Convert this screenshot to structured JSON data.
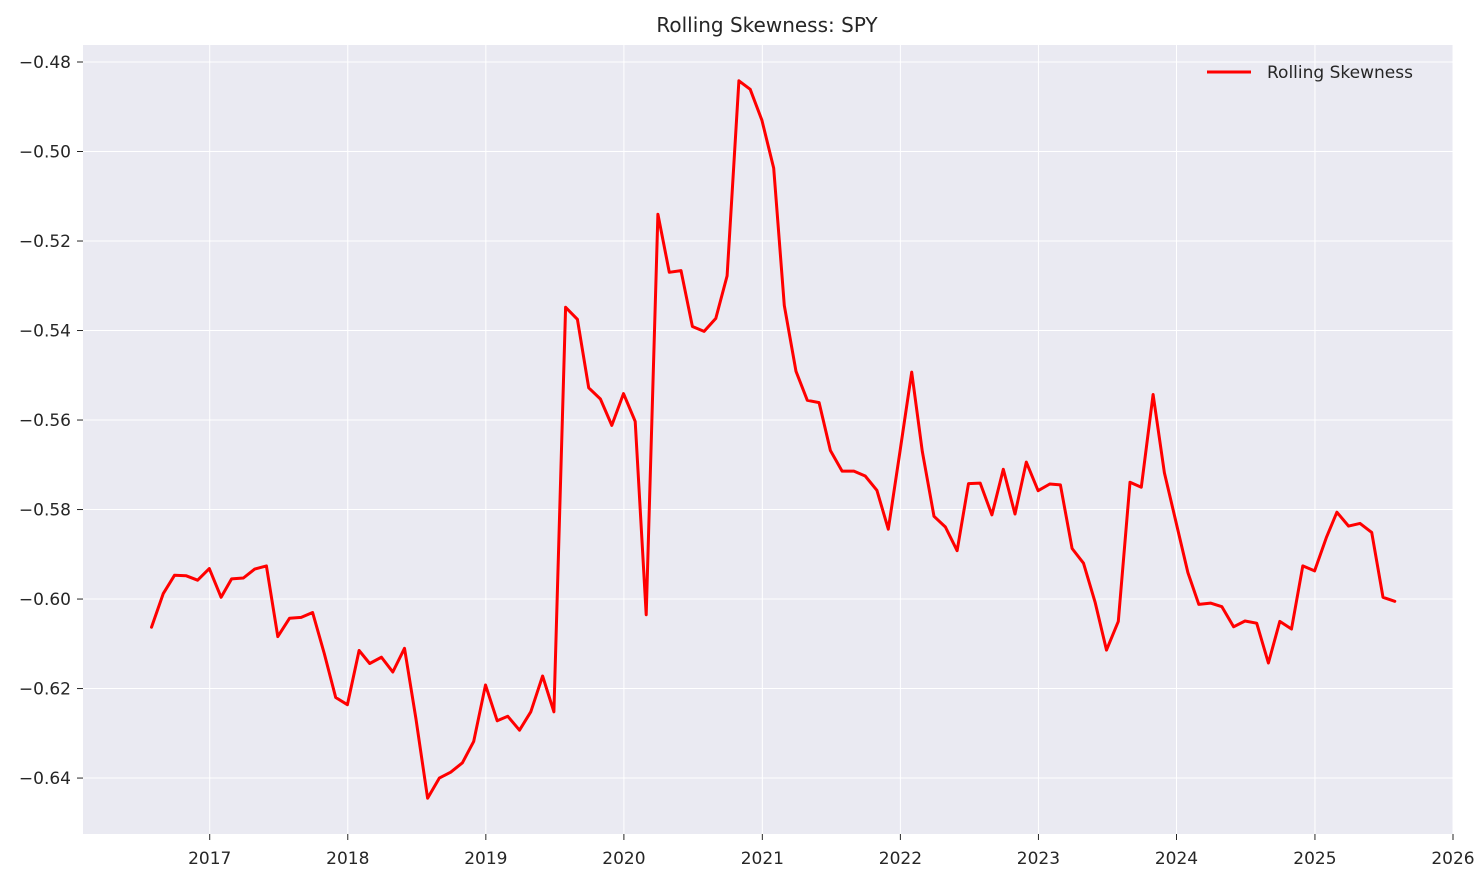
{
  "chart_data": {
    "type": "line",
    "title": "Rolling Skewness: SPY",
    "xlabel": "",
    "ylabel": "",
    "x_ticks": [
      "2017",
      "2018",
      "2019",
      "2020",
      "2021",
      "2022",
      "2023",
      "2024",
      "2025",
      "2026"
    ],
    "y_ticks": [
      "−0.64",
      "−0.62",
      "−0.60",
      "−0.58",
      "−0.56",
      "−0.54",
      "−0.52",
      "−0.50",
      "−0.48"
    ],
    "x_range": [
      "2016-02-01",
      "2026-01-01"
    ],
    "ylim": [
      -0.6525,
      -0.4762
    ],
    "grid": true,
    "legend_position": "top-right",
    "series": [
      {
        "name": "Rolling Skewness",
        "color": "#ff0000",
        "x": [
          "2016-07-31",
          "2016-08-31",
          "2016-09-30",
          "2016-10-31",
          "2016-11-30",
          "2016-12-31",
          "2017-01-31",
          "2017-02-28",
          "2017-03-31",
          "2017-04-30",
          "2017-05-31",
          "2017-06-30",
          "2017-07-31",
          "2017-08-31",
          "2017-09-30",
          "2017-10-31",
          "2017-11-30",
          "2017-12-31",
          "2018-01-31",
          "2018-02-28",
          "2018-03-31",
          "2018-04-30",
          "2018-05-31",
          "2018-06-30",
          "2018-07-31",
          "2018-08-31",
          "2018-09-30",
          "2018-10-31",
          "2018-11-30",
          "2018-12-31",
          "2019-01-31",
          "2019-02-28",
          "2019-03-31",
          "2019-04-30",
          "2019-05-31",
          "2019-06-30",
          "2019-07-31",
          "2019-08-31",
          "2019-09-30",
          "2019-10-31",
          "2019-11-30",
          "2019-12-31",
          "2020-01-31",
          "2020-02-29",
          "2020-03-31",
          "2020-04-30",
          "2020-05-31",
          "2020-06-30",
          "2020-07-31",
          "2020-08-31",
          "2020-09-30",
          "2020-10-31",
          "2020-11-30",
          "2020-12-31",
          "2021-01-31",
          "2021-02-28",
          "2021-03-31",
          "2021-04-30",
          "2021-05-31",
          "2021-06-30",
          "2021-07-31",
          "2021-08-31",
          "2021-09-30",
          "2021-10-31",
          "2021-11-30",
          "2021-12-31",
          "2022-01-31",
          "2022-02-28",
          "2022-03-31",
          "2022-04-30",
          "2022-05-31",
          "2022-06-30",
          "2022-07-31",
          "2022-08-31",
          "2022-09-30",
          "2022-10-31",
          "2022-11-30",
          "2022-12-31",
          "2023-01-31",
          "2023-02-28",
          "2023-03-31",
          "2023-04-30",
          "2023-05-31",
          "2023-06-30",
          "2023-07-31",
          "2023-08-31",
          "2023-09-30",
          "2023-10-31",
          "2023-11-30",
          "2023-12-31",
          "2024-01-31",
          "2024-02-29",
          "2024-03-31",
          "2024-04-30",
          "2024-05-31",
          "2024-06-30",
          "2024-07-31",
          "2024-08-31",
          "2024-09-30",
          "2024-10-31",
          "2024-11-30",
          "2024-12-31",
          "2025-01-31",
          "2025-02-28",
          "2025-03-31",
          "2025-04-30",
          "2025-05-31",
          "2025-06-30",
          "2025-07-31"
        ],
        "values": [
          -0.6063,
          -0.5988,
          -0.5947,
          -0.5948,
          -0.5958,
          -0.5932,
          -0.5996,
          -0.5955,
          -0.5953,
          -0.5933,
          -0.5926,
          -0.6084,
          -0.6043,
          -0.6041,
          -0.603,
          -0.6122,
          -0.622,
          -0.6236,
          -0.6115,
          -0.6144,
          -0.613,
          -0.6163,
          -0.611,
          -0.6267,
          -0.6445,
          -0.64,
          -0.6387,
          -0.6366,
          -0.6318,
          -0.6192,
          -0.6272,
          -0.6262,
          -0.6293,
          -0.6252,
          -0.6172,
          -0.6252,
          -0.5348,
          -0.5375,
          -0.5528,
          -0.5553,
          -0.5612,
          -0.5541,
          -0.5603,
          -0.6035,
          -0.514,
          -0.527,
          -0.5266,
          -0.5391,
          -0.5402,
          -0.5373,
          -0.5278,
          -0.4842,
          -0.4861,
          -0.493,
          -0.5037,
          -0.5344,
          -0.5491,
          -0.5556,
          -0.5561,
          -0.5668,
          -0.5714,
          -0.5714,
          -0.5725,
          -0.5757,
          -0.5844,
          -0.567,
          -0.5493,
          -0.567,
          -0.5815,
          -0.5839,
          -0.5892,
          -0.5742,
          -0.5741,
          -0.5812,
          -0.571,
          -0.581,
          -0.5694,
          -0.5758,
          -0.5743,
          -0.5745,
          -0.5887,
          -0.592,
          -0.6008,
          -0.6114,
          -0.605,
          -0.5739,
          -0.575,
          -0.5543,
          -0.5718,
          -0.5829,
          -0.5941,
          -0.6012,
          -0.6009,
          -0.6017,
          -0.6062,
          -0.6049,
          -0.6054,
          -0.6143,
          -0.605,
          -0.6067,
          -0.5926,
          -0.5937,
          -0.5863,
          -0.5806,
          -0.5837,
          -0.5831,
          -0.5851,
          -0.5996,
          -0.6005
        ]
      }
    ]
  }
}
